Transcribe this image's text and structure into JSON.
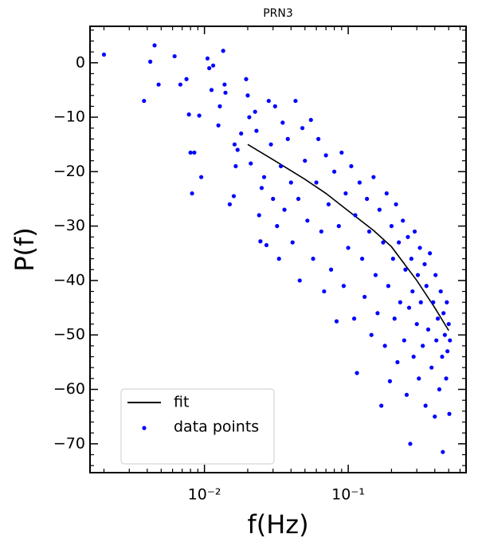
{
  "chart_data": {
    "type": "scatter",
    "title": "PRN3",
    "x_label": "f(Hz)",
    "y_label": "P(f)",
    "log_x": true,
    "xlim": [
      0.0016,
      0.66
    ],
    "ylim": [
      -75.3,
      6.7
    ],
    "xticks": [
      {
        "value": 0.01,
        "label": "10⁻²"
      },
      {
        "value": 0.1,
        "label": "10⁻¹"
      }
    ],
    "xminorticks": [
      0.002,
      0.003,
      0.004,
      0.005,
      0.006,
      0.007,
      0.008,
      0.009,
      0.02,
      0.03,
      0.04,
      0.05,
      0.06,
      0.07,
      0.08,
      0.09,
      0.2,
      0.3,
      0.4,
      0.5,
      0.6
    ],
    "yticks": [
      0,
      {
        "value": -10,
        "label": "−10"
      },
      {
        "value": -20,
        "label": "−20"
      },
      {
        "value": -30,
        "label": "−30"
      },
      {
        "value": -40,
        "label": "−40"
      },
      {
        "value": -50,
        "label": "−50"
      },
      {
        "value": -60,
        "label": "−60"
      },
      {
        "value": -70,
        "label": "−70"
      }
    ],
    "yminorticks": [
      6,
      4,
      2,
      -2,
      -4,
      -6,
      -8,
      -12,
      -14,
      -16,
      -18,
      -22,
      -24,
      -26,
      -28,
      -32,
      -34,
      -36,
      -38,
      -42,
      -44,
      -46,
      -48,
      -52,
      -54,
      -56,
      -58,
      -62,
      -64,
      -66,
      -68,
      -72,
      -74
    ],
    "legend": "lower left",
    "series": [
      {
        "name": "fit",
        "type": "line",
        "color": "#000000",
        "x": [
          0.02,
          0.03,
          0.05,
          0.07,
          0.1,
          0.15,
          0.2,
          0.3,
          0.4,
          0.5
        ],
        "values": [
          -15,
          -17.8,
          -21.4,
          -24,
          -27.2,
          -30.8,
          -33.8,
          -40,
          -45,
          -49.2
        ]
      },
      {
        "name": "data points",
        "type": "scatter",
        "color": "#0000ff",
        "x": [
          0.002,
          0.0038,
          0.0042,
          0.0045,
          0.0048,
          0.0062,
          0.0068,
          0.0075,
          0.0078,
          0.008,
          0.0085,
          0.0082,
          0.0092,
          0.0095,
          0.0105,
          0.0108,
          0.0115,
          0.0112,
          0.0125,
          0.0128,
          0.0135,
          0.0138,
          0.014,
          0.015,
          0.016,
          0.0162,
          0.0165,
          0.017,
          0.018,
          0.0195,
          0.02,
          0.0205,
          0.021,
          0.0225,
          0.023,
          0.024,
          0.0245,
          0.025,
          0.026,
          0.027,
          0.028,
          0.029,
          0.03,
          0.031,
          0.032,
          0.033,
          0.034,
          0.035,
          0.036,
          0.038,
          0.04,
          0.041,
          0.043,
          0.045,
          0.046,
          0.048,
          0.05,
          0.052,
          0.055,
          0.057,
          0.06,
          0.062,
          0.065,
          0.068,
          0.07,
          0.073,
          0.076,
          0.08,
          0.083,
          0.086,
          0.09,
          0.093,
          0.096,
          0.1,
          0.105,
          0.11,
          0.112,
          0.115,
          0.12,
          0.125,
          0.13,
          0.135,
          0.14,
          0.145,
          0.15,
          0.155,
          0.16,
          0.165,
          0.17,
          0.175,
          0.18,
          0.185,
          0.19,
          0.195,
          0.2,
          0.205,
          0.21,
          0.215,
          0.22,
          0.225,
          0.23,
          0.24,
          0.245,
          0.25,
          0.255,
          0.26,
          0.265,
          0.27,
          0.275,
          0.28,
          0.285,
          0.29,
          0.3,
          0.305,
          0.31,
          0.315,
          0.32,
          0.33,
          0.34,
          0.345,
          0.35,
          0.36,
          0.37,
          0.38,
          0.39,
          0.4,
          0.405,
          0.41,
          0.42,
          0.43,
          0.44,
          0.45,
          0.455,
          0.46,
          0.47,
          0.48,
          0.485,
          0.49,
          0.5,
          0.505,
          0.51
        ],
        "values": [
          1.5,
          -7,
          0.2,
          3.2,
          -4,
          1.2,
          -4,
          -3,
          -9.5,
          -16.5,
          -16.5,
          -24,
          -9.7,
          -21,
          0.8,
          -1,
          -0.5,
          -5,
          -11.5,
          -8,
          2.2,
          -4,
          -5.5,
          -26,
          -24.5,
          -15,
          -19,
          -16,
          -13,
          -3,
          -6,
          -10,
          -18.5,
          -9,
          -12.5,
          -28,
          -32.8,
          -23,
          -21,
          -33.5,
          -7,
          -15,
          -25,
          -8,
          -30,
          -36,
          -19,
          -11,
          -27,
          -14,
          -22,
          -33,
          -7,
          -25,
          -40,
          -12,
          -18,
          -29,
          -10.5,
          -36,
          -22,
          -14,
          -31,
          -42,
          -17,
          -26,
          -38,
          -20,
          -47.5,
          -30,
          -16.5,
          -41,
          -24,
          -34,
          -19,
          -47,
          -28,
          -57,
          -22,
          -36,
          -43,
          -25,
          -31,
          -50,
          -21,
          -39,
          -46,
          -27,
          -63,
          -33,
          -52,
          -24,
          -41,
          -58.5,
          -30,
          -36,
          -47,
          -26,
          -55,
          -33,
          -44,
          -29,
          -51,
          -38,
          -61,
          -32,
          -45,
          -70,
          -36,
          -42,
          -54,
          -31,
          -48,
          -39,
          -58,
          -34,
          -44,
          -52,
          -37,
          -63,
          -41,
          -49,
          -35,
          -56,
          -44,
          -65,
          -39,
          -51,
          -47,
          -60,
          -42,
          -54,
          -71.5,
          -46,
          -50,
          -58,
          -44,
          -53,
          -48,
          -64.5,
          -51
        ]
      }
    ]
  }
}
